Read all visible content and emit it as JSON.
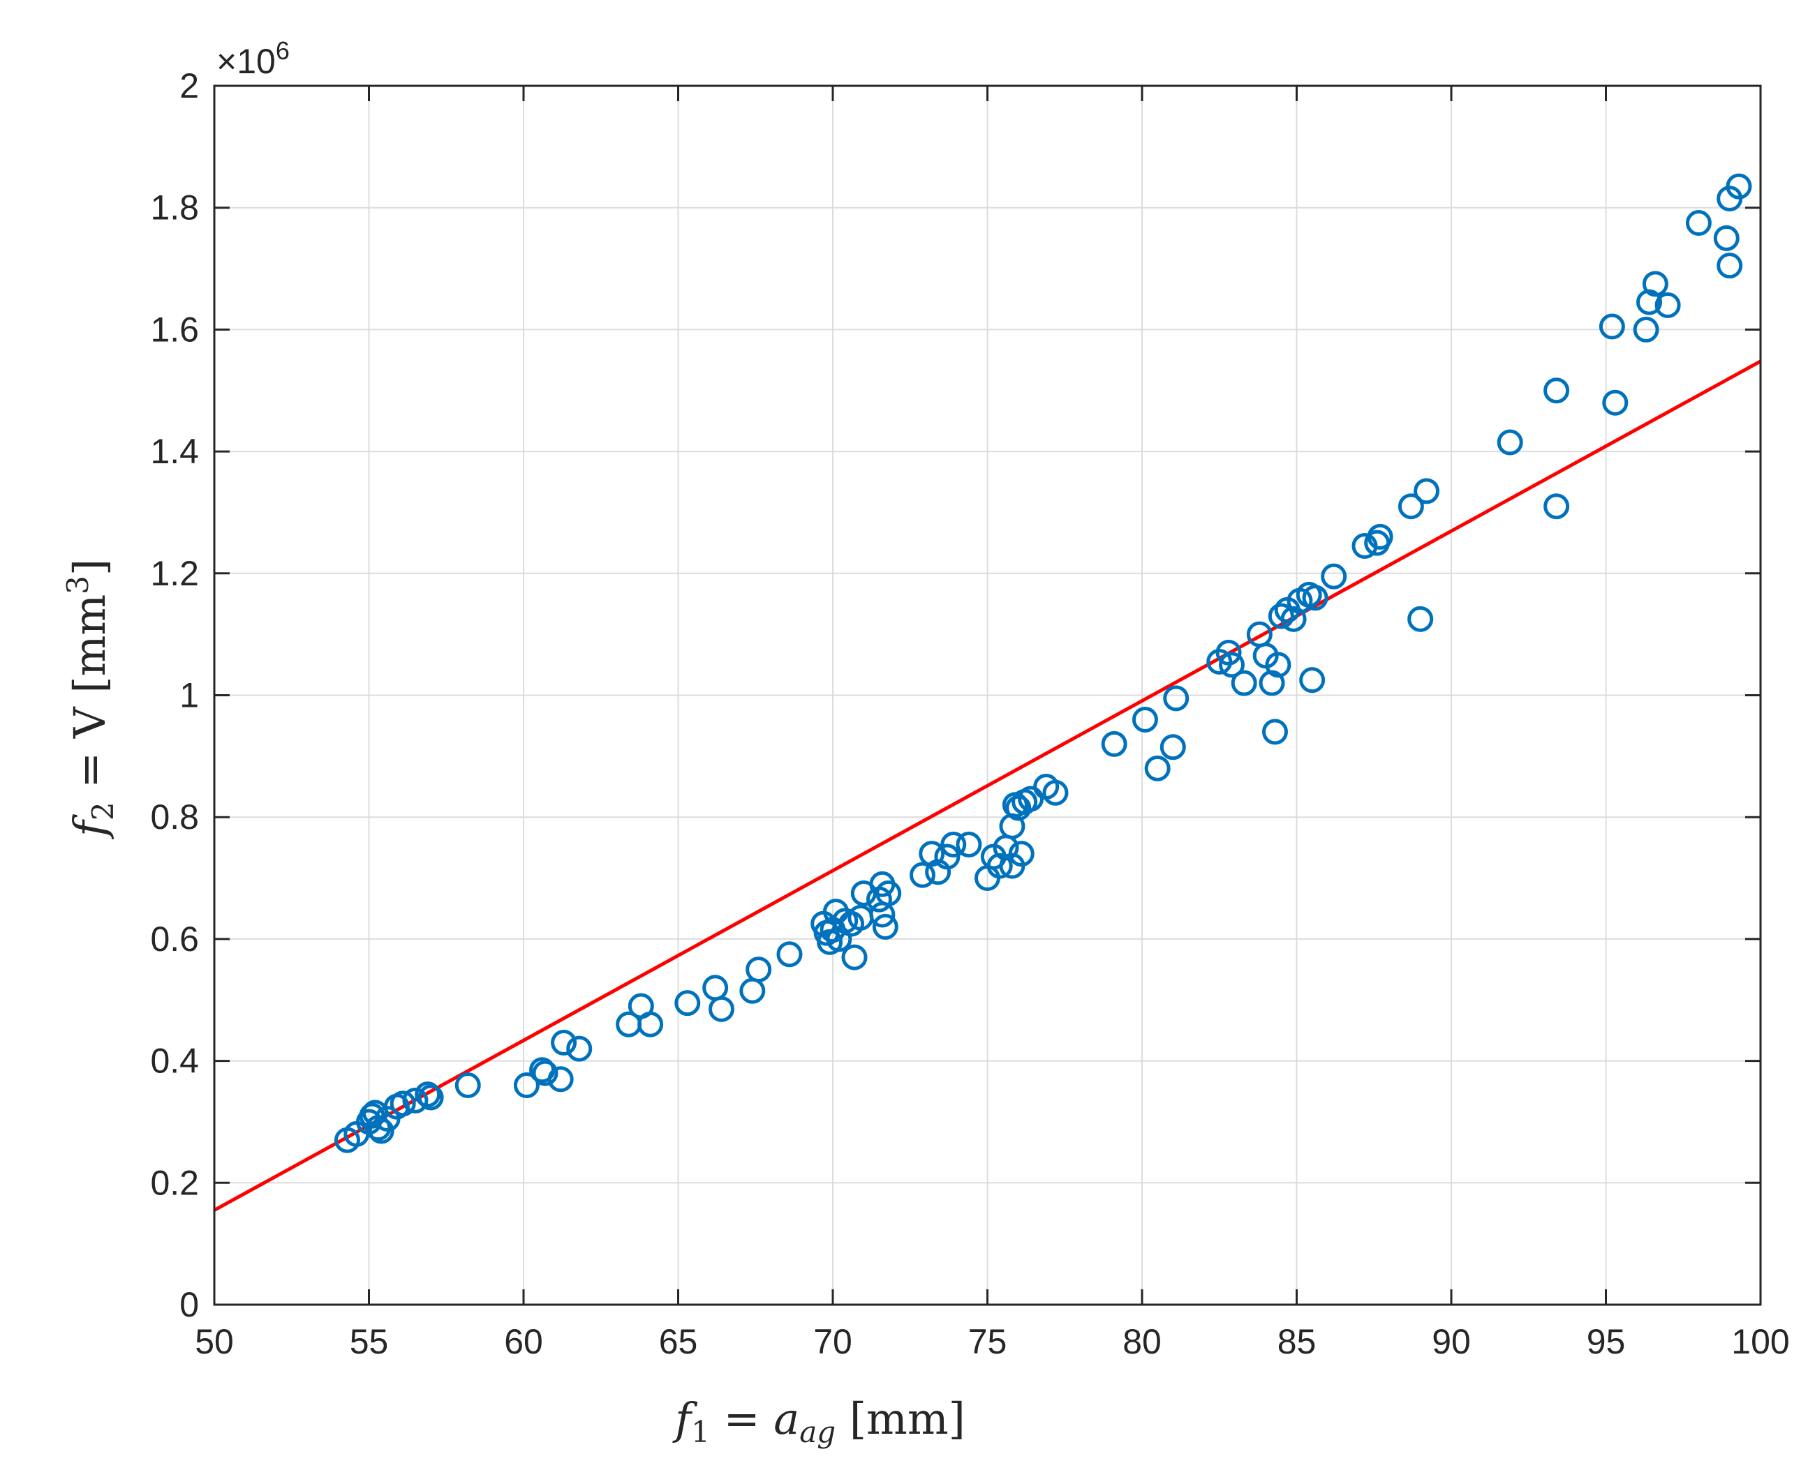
{
  "chart_data": {
    "type": "scatter",
    "title": "",
    "xlabel_parts": [
      "f",
      "1",
      " = a",
      "ag",
      " [mm]"
    ],
    "ylabel_parts": [
      "f",
      "2",
      " = V [mm",
      "3",
      "]"
    ],
    "y_exponent_label": "×10",
    "y_exponent_power": "6",
    "xlim": [
      50,
      100
    ],
    "ylim": [
      0,
      2
    ],
    "xticks": [
      "50",
      "55",
      "60",
      "65",
      "70",
      "75",
      "80",
      "85",
      "90",
      "95",
      "100"
    ],
    "yticks": [
      "0",
      "0.2",
      "0.4",
      "0.6",
      "0.8",
      "1",
      "1.2",
      "1.4",
      "1.6",
      "1.8",
      "2"
    ],
    "grid": true,
    "colors": {
      "points": "#0072BD",
      "fit_line": "#FF0000",
      "grid": "#DCDCDC",
      "axes": "#262626"
    },
    "fit_line": {
      "x": [
        50,
        100
      ],
      "y": [
        0.155,
        1.548
      ]
    },
    "points": [
      [
        54.3,
        0.27
      ],
      [
        54.6,
        0.28
      ],
      [
        55.0,
        0.3
      ],
      [
        55.1,
        0.31
      ],
      [
        55.2,
        0.315
      ],
      [
        55.3,
        0.29
      ],
      [
        55.4,
        0.285
      ],
      [
        55.6,
        0.305
      ],
      [
        55.9,
        0.325
      ],
      [
        56.1,
        0.33
      ],
      [
        56.5,
        0.335
      ],
      [
        56.9,
        0.345
      ],
      [
        57.0,
        0.34
      ],
      [
        58.2,
        0.36
      ],
      [
        60.1,
        0.36
      ],
      [
        60.6,
        0.385
      ],
      [
        60.7,
        0.38
      ],
      [
        61.2,
        0.37
      ],
      [
        61.3,
        0.43
      ],
      [
        61.8,
        0.42
      ],
      [
        63.4,
        0.46
      ],
      [
        63.8,
        0.49
      ],
      [
        64.1,
        0.46
      ],
      [
        65.3,
        0.495
      ],
      [
        66.2,
        0.52
      ],
      [
        66.4,
        0.485
      ],
      [
        67.4,
        0.515
      ],
      [
        67.6,
        0.55
      ],
      [
        68.6,
        0.575
      ],
      [
        69.7,
        0.625
      ],
      [
        69.8,
        0.61
      ],
      [
        69.9,
        0.595
      ],
      [
        70.0,
        0.615
      ],
      [
        70.1,
        0.645
      ],
      [
        70.2,
        0.6
      ],
      [
        70.4,
        0.63
      ],
      [
        70.6,
        0.625
      ],
      [
        70.7,
        0.57
      ],
      [
        70.9,
        0.635
      ],
      [
        71.0,
        0.675
      ],
      [
        71.5,
        0.665
      ],
      [
        71.6,
        0.69
      ],
      [
        71.6,
        0.64
      ],
      [
        71.7,
        0.62
      ],
      [
        71.8,
        0.675
      ],
      [
        72.9,
        0.705
      ],
      [
        73.2,
        0.74
      ],
      [
        73.4,
        0.71
      ],
      [
        73.7,
        0.735
      ],
      [
        73.9,
        0.755
      ],
      [
        74.4,
        0.755
      ],
      [
        75.0,
        0.7
      ],
      [
        75.2,
        0.735
      ],
      [
        75.4,
        0.72
      ],
      [
        75.6,
        0.75
      ],
      [
        75.8,
        0.72
      ],
      [
        75.8,
        0.785
      ],
      [
        75.9,
        0.82
      ],
      [
        76.0,
        0.815
      ],
      [
        76.1,
        0.74
      ],
      [
        76.2,
        0.825
      ],
      [
        76.4,
        0.83
      ],
      [
        76.9,
        0.85
      ],
      [
        77.2,
        0.84
      ],
      [
        79.1,
        0.92
      ],
      [
        80.1,
        0.96
      ],
      [
        80.5,
        0.88
      ],
      [
        81.0,
        0.915
      ],
      [
        81.1,
        0.995
      ],
      [
        82.5,
        1.055
      ],
      [
        82.8,
        1.07
      ],
      [
        82.9,
        1.05
      ],
      [
        83.3,
        1.02
      ],
      [
        83.8,
        1.1
      ],
      [
        84.0,
        1.065
      ],
      [
        84.2,
        1.02
      ],
      [
        84.3,
        0.94
      ],
      [
        84.4,
        1.05
      ],
      [
        84.5,
        1.13
      ],
      [
        84.7,
        1.14
      ],
      [
        84.9,
        1.125
      ],
      [
        85.1,
        1.155
      ],
      [
        85.4,
        1.165
      ],
      [
        85.5,
        1.025
      ],
      [
        85.6,
        1.16
      ],
      [
        86.2,
        1.195
      ],
      [
        87.2,
        1.245
      ],
      [
        87.6,
        1.25
      ],
      [
        87.7,
        1.26
      ],
      [
        88.7,
        1.31
      ],
      [
        89.0,
        1.125
      ],
      [
        89.2,
        1.335
      ],
      [
        91.9,
        1.415
      ],
      [
        93.4,
        1.5
      ],
      [
        93.4,
        1.31
      ],
      [
        95.2,
        1.605
      ],
      [
        95.3,
        1.48
      ],
      [
        96.3,
        1.6
      ],
      [
        96.4,
        1.645
      ],
      [
        96.6,
        1.675
      ],
      [
        97.0,
        1.64
      ],
      [
        98.0,
        1.775
      ],
      [
        98.9,
        1.75
      ],
      [
        99.0,
        1.815
      ],
      [
        99.0,
        1.705
      ],
      [
        99.3,
        1.835
      ]
    ]
  }
}
